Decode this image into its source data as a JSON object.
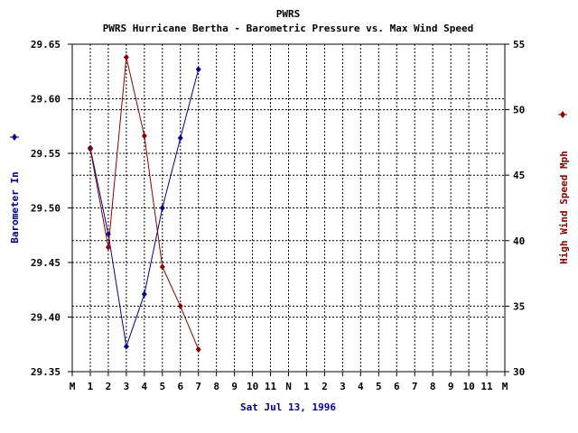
{
  "chart_data": {
    "type": "line",
    "title": "PWRS",
    "subtitle": "PWRS Hurricane Bertha - Barometric Pressure vs. Max Wind Speed",
    "xlabel": "Sat Jul 13, 1996",
    "x_ticks": [
      "M",
      "1",
      "2",
      "3",
      "4",
      "5",
      "6",
      "7",
      "8",
      "9",
      "10",
      "11",
      "N",
      "1",
      "2",
      "3",
      "4",
      "5",
      "6",
      "7",
      "8",
      "9",
      "10",
      "11",
      "M"
    ],
    "grid": true,
    "y_left": {
      "label": "Barometer In",
      "range": [
        29.35,
        29.65
      ],
      "ticks": [
        "29.35",
        "29.40",
        "29.45",
        "29.50",
        "29.55",
        "29.60",
        "29.65"
      ]
    },
    "y_right": {
      "label": "High Wind Speed Mph",
      "range": [
        30,
        55
      ],
      "ticks": [
        "30",
        "35",
        "40",
        "45",
        "50",
        "55"
      ]
    },
    "colors": {
      "barometer": "#00008b",
      "wind": "#8b0000",
      "text_dark": "#000000",
      "xlabel": "#00008b"
    },
    "series": [
      {
        "name": "Barometer In",
        "axis": "left",
        "x": [
          1,
          2,
          3,
          4,
          5,
          6,
          7
        ],
        "values": [
          29.555,
          29.476,
          29.373,
          29.421,
          29.5,
          29.564,
          29.627
        ]
      },
      {
        "name": "High Wind Speed Mph",
        "axis": "right",
        "x": [
          1,
          2,
          3,
          4,
          5,
          6,
          7
        ],
        "values": [
          47,
          39.5,
          54,
          48,
          38,
          35,
          31.7
        ]
      }
    ]
  }
}
